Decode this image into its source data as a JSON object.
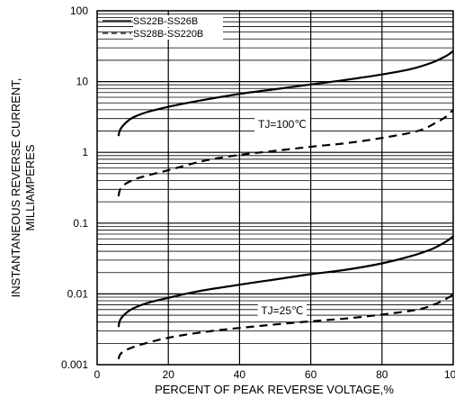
{
  "chart_data": {
    "type": "line",
    "title": "",
    "xlabel": "PERCENT OF PEAK REVERSE VOLTAGE,%",
    "ylabel_lines": [
      "INSTANTANEOUS REVERSE CURRENT,",
      "MILLIAMPERES"
    ],
    "x_scale": "linear",
    "y_scale": "log",
    "xlim": [
      0,
      100
    ],
    "ylim": [
      0.001,
      100
    ],
    "x_ticks": [
      0,
      20,
      40,
      60,
      80,
      100
    ],
    "x_tick_labels": [
      "0",
      "20",
      "40",
      "60",
      "80",
      "100"
    ],
    "y_ticks": [
      0.001,
      0.01,
      0.1,
      1,
      10,
      100
    ],
    "y_tick_labels": [
      "0.001",
      "0.01",
      "0.1",
      "1",
      "10",
      "100"
    ],
    "grid": true,
    "legend": {
      "position": "top-left",
      "entries": [
        {
          "label": "SS22B-SS26B",
          "style": "solid"
        },
        {
          "label": "SS28B-SS220B",
          "style": "dashed"
        }
      ]
    },
    "annotations": [
      {
        "text": "TJ=100℃",
        "x": 52,
        "y": 2.5
      },
      {
        "text": "TJ=25℃",
        "x": 52,
        "y": 0.0058
      }
    ],
    "series": [
      {
        "name": "SS22B-SS26B",
        "condition": "TJ=100℃",
        "style": "solid",
        "x": [
          6,
          6.5,
          8,
          10,
          14,
          20,
          28,
          40,
          50,
          60,
          70,
          80,
          88,
          94,
          98,
          100
        ],
        "y": [
          1.7,
          2.1,
          2.6,
          3.1,
          3.7,
          4.4,
          5.3,
          6.7,
          7.8,
          9.1,
          10.6,
          12.6,
          15,
          18.5,
          23,
          27
        ]
      },
      {
        "name": "SS28B-SS220B",
        "condition": "TJ=100℃",
        "style": "dashed",
        "x": [
          6,
          6.5,
          8,
          12,
          20,
          30,
          40,
          50,
          60,
          70,
          80,
          90,
          95,
          98,
          100
        ],
        "y": [
          0.24,
          0.3,
          0.36,
          0.44,
          0.56,
          0.76,
          0.92,
          1.05,
          1.2,
          1.35,
          1.6,
          2.0,
          2.6,
          3.2,
          4.0
        ]
      },
      {
        "name": "SS22B-SS26B",
        "condition": "TJ=25℃",
        "style": "solid",
        "x": [
          6,
          6.5,
          8,
          10,
          14,
          20,
          28,
          40,
          50,
          60,
          70,
          80,
          88,
          94,
          98,
          100
        ],
        "y": [
          0.0034,
          0.0043,
          0.0053,
          0.0062,
          0.0074,
          0.0088,
          0.0108,
          0.0135,
          0.016,
          0.019,
          0.022,
          0.027,
          0.034,
          0.043,
          0.055,
          0.065
        ]
      },
      {
        "name": "SS28B-SS220B",
        "condition": "TJ=25℃",
        "style": "dashed",
        "x": [
          6,
          6.5,
          8,
          12,
          20,
          30,
          40,
          50,
          60,
          70,
          80,
          90,
          95,
          98,
          100
        ],
        "y": [
          0.0012,
          0.0014,
          0.0016,
          0.0019,
          0.0024,
          0.0029,
          0.0033,
          0.0037,
          0.0041,
          0.0045,
          0.0051,
          0.006,
          0.0072,
          0.0085,
          0.0098
        ]
      }
    ]
  }
}
